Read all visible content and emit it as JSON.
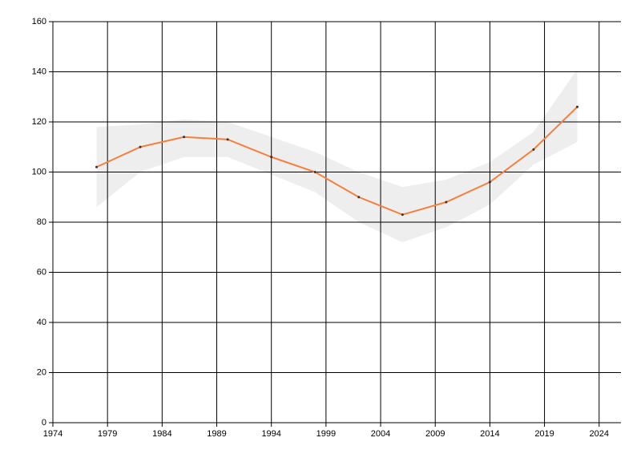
{
  "chart_data": {
    "type": "line",
    "x": [
      1978,
      1982,
      1986,
      1990,
      1994,
      1998,
      2002,
      2006,
      2010,
      2014,
      2018,
      2022
    ],
    "values": [
      102,
      110,
      114,
      113,
      106,
      100,
      90,
      83,
      88,
      96,
      109,
      126
    ],
    "color": "#f47f3e",
    "band": {
      "upper": [
        118,
        119,
        121,
        120,
        114,
        108,
        100,
        94,
        97,
        104,
        116,
        141
      ],
      "lower": [
        86,
        100,
        106,
        106,
        99,
        92,
        80,
        72,
        78,
        87,
        103,
        112
      ],
      "color": "#eeeeee"
    },
    "xlim": [
      1974,
      2026
    ],
    "xticks": [
      1974,
      1979,
      1984,
      1989,
      1994,
      1999,
      2004,
      2009,
      2014,
      2019,
      2024
    ],
    "ylim": [
      0,
      160
    ],
    "yticks": [
      0,
      20,
      40,
      60,
      80,
      100,
      120,
      140,
      160
    ],
    "grid": true
  }
}
